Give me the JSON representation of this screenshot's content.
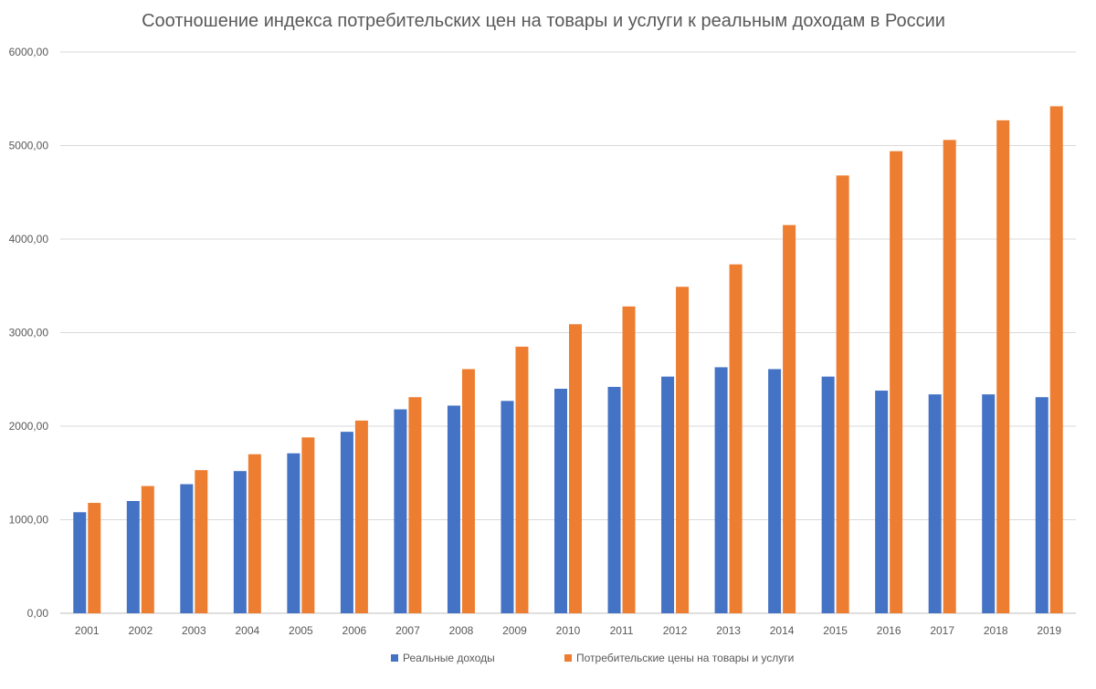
{
  "chart_data": {
    "type": "bar",
    "title": "Соотношение индекса потребительских цен на товары и услуги к реальным доходам в России",
    "xlabel": "",
    "ylabel": "",
    "ylim": [
      0,
      6000
    ],
    "yticks": [
      "0,00",
      "1000,00",
      "2000,00",
      "3000,00",
      "4000,00",
      "5000,00",
      "6000,00"
    ],
    "grid": true,
    "legend_position": "bottom",
    "categories": [
      "2001",
      "2002",
      "2003",
      "2004",
      "2005",
      "2006",
      "2007",
      "2008",
      "2009",
      "2010",
      "2011",
      "2012",
      "2013",
      "2014",
      "2015",
      "2016",
      "2017",
      "2018",
      "2019"
    ],
    "series": [
      {
        "name": "Реальные доходы",
        "color": "#4472C4",
        "values": [
          1080,
          1200,
          1380,
          1520,
          1710,
          1940,
          2180,
          2220,
          2270,
          2400,
          2420,
          2530,
          2630,
          2610,
          2530,
          2380,
          2340,
          2340,
          2310
        ]
      },
      {
        "name": "Потребительские цены на товары и услуги",
        "color": "#ED7D31",
        "values": [
          1180,
          1360,
          1530,
          1700,
          1880,
          2060,
          2310,
          2610,
          2850,
          3090,
          3280,
          3490,
          3730,
          4150,
          4680,
          4940,
          5060,
          5270,
          5420
        ]
      }
    ]
  }
}
